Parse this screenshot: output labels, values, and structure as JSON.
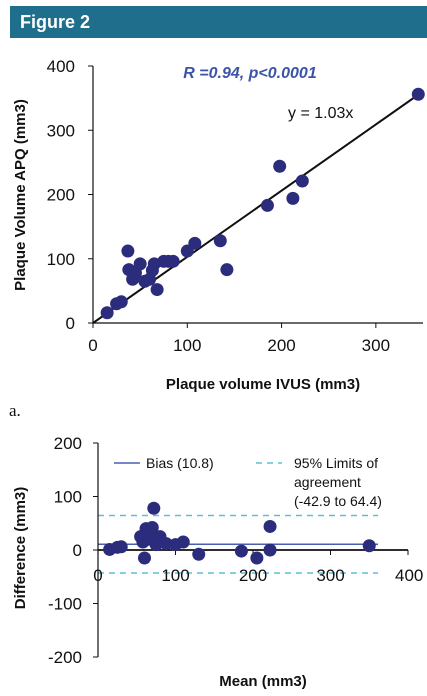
{
  "figure": {
    "title": "Figure 2",
    "panel_label": "a."
  },
  "colors": {
    "header_bg": "#1f6e8c",
    "point": "#2b2d7c",
    "annotation": "#3c54a8",
    "line": "#111111",
    "bias": "#4a5fb0",
    "loa": "#5bc0d3"
  },
  "chart_data": [
    {
      "type": "scatter",
      "title": "",
      "xlabel": "Plaque volume IVUS (mm3)",
      "ylabel": "Plaque Volume APQ (mm3)",
      "xlim": [
        0,
        350
      ],
      "ylim": [
        0,
        400
      ],
      "xticks": [
        0,
        100,
        200,
        300
      ],
      "yticks": [
        0,
        100,
        200,
        300,
        400
      ],
      "annotation": "R =0.94, p<0.0001",
      "trendline": {
        "label": "y = 1.03x",
        "slope": 1.03
      },
      "grid": false,
      "points": [
        [
          15,
          16
        ],
        [
          25,
          30
        ],
        [
          30,
          33
        ],
        [
          37,
          112
        ],
        [
          38,
          83
        ],
        [
          42,
          68
        ],
        [
          45,
          78
        ],
        [
          50,
          92
        ],
        [
          55,
          65
        ],
        [
          60,
          68
        ],
        [
          63,
          82
        ],
        [
          65,
          92
        ],
        [
          68,
          52
        ],
        [
          75,
          96
        ],
        [
          80,
          96
        ],
        [
          85,
          96
        ],
        [
          100,
          112
        ],
        [
          108,
          124
        ],
        [
          135,
          128
        ],
        [
          142,
          83
        ],
        [
          185,
          183
        ],
        [
          198,
          244
        ],
        [
          212,
          194
        ],
        [
          222,
          221
        ],
        [
          345,
          356
        ]
      ]
    },
    {
      "type": "scatter",
      "title": "",
      "xlabel": "Mean (mm3)",
      "ylabel": "Difference (mm3)",
      "xlim": [
        0,
        400
      ],
      "ylim": [
        -200,
        200
      ],
      "xticks": [
        0,
        100,
        200,
        300,
        400
      ],
      "yticks": [
        -200,
        -100,
        0,
        100,
        200
      ],
      "grid": false,
      "legend_placement": "top-right",
      "bias": {
        "label": "Bias (10.8)",
        "value": 10.8
      },
      "limits_of_agreement": {
        "label_lines": [
          "95% Limits of",
          "agreement",
          "(-42.9  to 64.4)"
        ],
        "lower": -42.9,
        "upper": 64.4
      },
      "points": [
        [
          15,
          1
        ],
        [
          25,
          5
        ],
        [
          30,
          6
        ],
        [
          55,
          25
        ],
        [
          58,
          15
        ],
        [
          60,
          -15
        ],
        [
          62,
          40
        ],
        [
          65,
          20
        ],
        [
          68,
          30
        ],
        [
          70,
          42
        ],
        [
          72,
          78
        ],
        [
          75,
          10
        ],
        [
          80,
          25
        ],
        [
          88,
          12
        ],
        [
          100,
          10
        ],
        [
          110,
          15
        ],
        [
          130,
          -8
        ],
        [
          185,
          -2
        ],
        [
          205,
          -15
        ],
        [
          222,
          44
        ],
        [
          222,
          0
        ],
        [
          350,
          8
        ]
      ]
    }
  ]
}
